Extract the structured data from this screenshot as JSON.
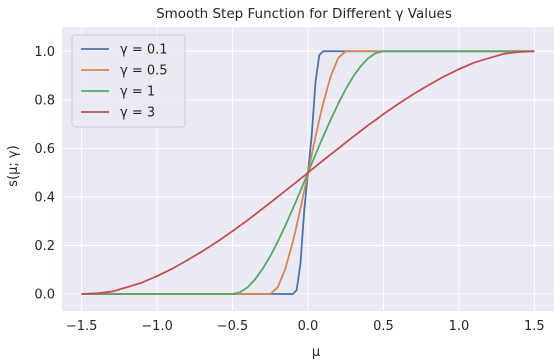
{
  "chart_data": {
    "type": "line",
    "title": "Smooth Step Function for Different γ Values",
    "xlabel": "μ",
    "ylabel": "s(μ; γ)",
    "xlim": [
      -1.63,
      1.63
    ],
    "ylim": [
      -0.07,
      1.1
    ],
    "xticks": [
      -1.5,
      -1.0,
      -0.5,
      0.0,
      0.5,
      1.0,
      1.5
    ],
    "xtick_labels": [
      "−1.5",
      "−1.0",
      "−0.5",
      "0.0",
      "0.5",
      "1.0",
      "1.5"
    ],
    "yticks": [
      0.0,
      0.2,
      0.4,
      0.6,
      0.8,
      1.0
    ],
    "ytick_labels": [
      "0.0",
      "0.2",
      "0.4",
      "0.6",
      "0.8",
      "1.0"
    ],
    "grid": true,
    "legend_position": "top-left",
    "x": [
      -1.5,
      -1.4,
      -1.3,
      -1.2,
      -1.1,
      -1.0,
      -0.9,
      -0.8,
      -0.7,
      -0.6,
      -0.5,
      -0.45,
      -0.4,
      -0.35,
      -0.3,
      -0.25,
      -0.2,
      -0.15,
      -0.1,
      -0.075,
      -0.05,
      -0.025,
      0.0,
      0.025,
      0.05,
      0.075,
      0.1,
      0.15,
      0.2,
      0.25,
      0.3,
      0.35,
      0.4,
      0.45,
      0.5,
      0.6,
      0.7,
      0.8,
      0.9,
      1.0,
      1.1,
      1.2,
      1.3,
      1.4,
      1.5
    ],
    "series": [
      {
        "name": "γ = 0.1",
        "color": "#4c72b0",
        "values": [
          0,
          0,
          0,
          0,
          0,
          0,
          0,
          0,
          0,
          0,
          0,
          0,
          0,
          0,
          0,
          0,
          0,
          0,
          0,
          0.016,
          0.125,
          0.344,
          0.5,
          0.656,
          0.875,
          0.984,
          1,
          1,
          1,
          1,
          1,
          1,
          1,
          1,
          1,
          1,
          1,
          1,
          1,
          1,
          1,
          1,
          1,
          1,
          1
        ]
      },
      {
        "name": "γ = 0.5",
        "color": "#dd8452",
        "values": [
          0,
          0,
          0,
          0,
          0,
          0,
          0,
          0,
          0,
          0,
          0,
          0,
          0,
          0,
          0,
          0,
          0.028,
          0.104,
          0.216,
          0.282,
          0.352,
          0.425,
          0.5,
          0.575,
          0.648,
          0.718,
          0.784,
          0.896,
          0.972,
          1,
          1,
          1,
          1,
          1,
          1,
          1,
          1,
          1,
          1,
          1,
          1,
          1,
          1,
          1,
          1
        ]
      },
      {
        "name": "γ = 1",
        "color": "#55a868",
        "values": [
          0,
          0,
          0,
          0,
          0,
          0,
          0,
          0,
          0,
          0,
          0,
          0.007,
          0.028,
          0.061,
          0.104,
          0.156,
          0.216,
          0.282,
          0.352,
          0.388,
          0.425,
          0.462,
          0.5,
          0.538,
          0.575,
          0.612,
          0.648,
          0.718,
          0.784,
          0.844,
          0.896,
          0.939,
          0.972,
          0.993,
          1,
          1,
          1,
          1,
          1,
          1,
          1,
          1,
          1,
          1,
          1
        ]
      },
      {
        "name": "γ = 3",
        "color": "#c44e52",
        "values": [
          0,
          0.003,
          0.01,
          0.028,
          0.047,
          0.074,
          0.104,
          0.139,
          0.176,
          0.216,
          0.259,
          0.282,
          0.304,
          0.328,
          0.352,
          0.376,
          0.401,
          0.425,
          0.45,
          0.462,
          0.475,
          0.487,
          0.5,
          0.513,
          0.525,
          0.538,
          0.55,
          0.575,
          0.599,
          0.624,
          0.648,
          0.672,
          0.696,
          0.718,
          0.741,
          0.784,
          0.824,
          0.861,
          0.896,
          0.926,
          0.953,
          0.972,
          0.99,
          0.997,
          1
        ]
      }
    ]
  }
}
